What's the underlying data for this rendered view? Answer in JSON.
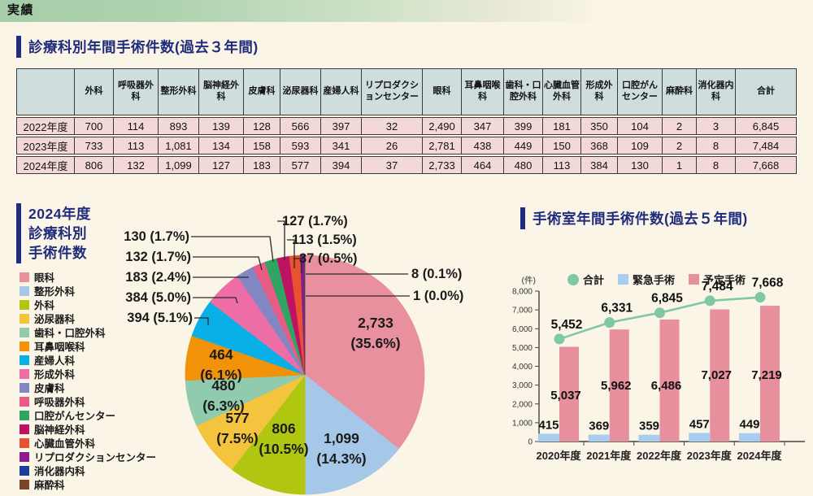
{
  "header": {
    "title": "実績"
  },
  "sections": {
    "table": {
      "title": "診療科別年間手術件数(過去３年間)"
    },
    "pie": {
      "title_lines": [
        "2024年度",
        "診療科別",
        "手術件数"
      ]
    },
    "bar": {
      "title": "手術室年間手術件数(過去５年間)",
      "unit": "(件)"
    }
  },
  "chart_data": [
    {
      "type": "table",
      "title": "診療科別年間手術件数(過去３年間)",
      "columns": [
        "外科",
        "呼吸器外科",
        "整形外科",
        "脳神経外科",
        "皮膚科",
        "泌尿器科",
        "産婦人科",
        "リプロダクションセンター",
        "眼科",
        "耳鼻咽喉科",
        "歯科・口腔外科",
        "心臓血管外科",
        "形成外科",
        "口腔がんセンター",
        "麻酔科",
        "消化器内科",
        "合計"
      ],
      "rows": [
        {
          "year": "2022年度",
          "values": [
            "700",
            "114",
            "893",
            "139",
            "128",
            "566",
            "397",
            "32",
            "2,490",
            "347",
            "399",
            "181",
            "350",
            "104",
            "2",
            "3",
            "6,845"
          ]
        },
        {
          "year": "2023年度",
          "values": [
            "733",
            "113",
            "1,081",
            "134",
            "158",
            "593",
            "341",
            "26",
            "2,781",
            "438",
            "449",
            "150",
            "368",
            "109",
            "2",
            "8",
            "7,484"
          ]
        },
        {
          "year": "2024年度",
          "values": [
            "806",
            "132",
            "1,099",
            "127",
            "183",
            "577",
            "394",
            "37",
            "2,733",
            "464",
            "480",
            "113",
            "384",
            "130",
            "1",
            "8",
            "7,668"
          ]
        }
      ]
    },
    {
      "type": "pie",
      "title": "2024年度 診療科別 手術件数",
      "total": 7668,
      "slices": [
        {
          "name": "眼科",
          "value": 2733,
          "label": "2,733",
          "pct": "35.6%",
          "color": "#e9909e"
        },
        {
          "name": "整形外科",
          "value": 1099,
          "label": "1,099",
          "pct": "14.3%",
          "color": "#a5c8e9"
        },
        {
          "name": "外科",
          "value": 806,
          "label": "806",
          "pct": "10.5%",
          "color": "#b0c611"
        },
        {
          "name": "泌尿器科",
          "value": 577,
          "label": "577",
          "pct": "7.5%",
          "color": "#f5c43e"
        },
        {
          "name": "歯科・口腔外科",
          "value": 480,
          "label": "480",
          "pct": "6.3%",
          "color": "#8fcbac"
        },
        {
          "name": "耳鼻咽喉科",
          "value": 464,
          "label": "464",
          "pct": "6.1%",
          "color": "#f19208"
        },
        {
          "name": "産婦人科",
          "value": 394,
          "label": "394",
          "pct": "5.1%",
          "color": "#09b0e8"
        },
        {
          "name": "形成外科",
          "value": 384,
          "label": "384",
          "pct": "5.0%",
          "color": "#ed6ea6"
        },
        {
          "name": "皮膚科",
          "value": 183,
          "label": "183",
          "pct": "2.4%",
          "color": "#8287c4"
        },
        {
          "name": "呼吸器外科",
          "value": 132,
          "label": "132",
          "pct": "1.7%",
          "color": "#e75c85"
        },
        {
          "name": "口腔がんセンター",
          "value": 130,
          "label": "130",
          "pct": "1.7%",
          "color": "#2ea563"
        },
        {
          "name": "脳神経外科",
          "value": 127,
          "label": "127",
          "pct": "1.7%",
          "color": "#c01263"
        },
        {
          "name": "心臓血管外科",
          "value": 113,
          "label": "113",
          "pct": "1.5%",
          "color": "#e85231"
        },
        {
          "name": "リプロダクションセンター",
          "value": 37,
          "label": "37",
          "pct": "0.5%",
          "color": "#8d1b8d"
        },
        {
          "name": "消化器内科",
          "value": 8,
          "label": "8",
          "pct": "0.1%",
          "color": "#1d3e9c"
        },
        {
          "name": "麻酔科",
          "value": 1,
          "label": "1",
          "pct": "0.0%",
          "color": "#7c4527"
        }
      ]
    },
    {
      "type": "bar",
      "title": "手術室年間手術件数(過去５年間)",
      "unit": "(件)",
      "categories": [
        "2020年度",
        "2021年度",
        "2022年度",
        "2023年度",
        "2024年度"
      ],
      "ylim": [
        0,
        8000
      ],
      "yticks": [
        "0",
        "1,000",
        "2,000",
        "3,000",
        "4,000",
        "5,000",
        "6,000",
        "7,000",
        "8,000"
      ],
      "series": [
        {
          "name": "合計",
          "type": "line",
          "values": [
            5452,
            6331,
            6845,
            7484,
            7668
          ],
          "labels": [
            "5,452",
            "6,331",
            "6,845",
            "7,484",
            "7,668"
          ],
          "color": "#7fc8a3"
        },
        {
          "name": "緊急手術",
          "type": "bar",
          "values": [
            415,
            369,
            359,
            457,
            449
          ],
          "labels": [
            "415",
            "369",
            "359",
            "457",
            "449"
          ],
          "color": "#a9cdef"
        },
        {
          "name": "予定手術",
          "type": "bar",
          "values": [
            5037,
            5962,
            6486,
            7027,
            7219
          ],
          "labels": [
            "5,037",
            "5,962",
            "6,486",
            "7,027",
            "7,219"
          ],
          "color": "#e88f9e"
        }
      ]
    }
  ]
}
